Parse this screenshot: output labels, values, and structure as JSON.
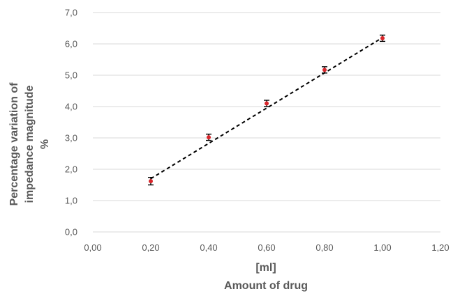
{
  "chart_data": {
    "type": "scatter",
    "title": "",
    "xlabel_lines": [
      "[ml]",
      "Amount of drug"
    ],
    "ylabel_lines": [
      "Percentage variation of",
      "impedance magnitude",
      "%"
    ],
    "xlim": [
      0,
      1.2
    ],
    "ylim": [
      0,
      7
    ],
    "x_ticks": [
      0,
      0.2,
      0.4,
      0.6,
      0.8,
      1.0,
      1.2
    ],
    "x_tick_labels": [
      "0,00",
      "0,20",
      "0,40",
      "0,60",
      "0,80",
      "1,00",
      "1,20"
    ],
    "y_ticks": [
      0,
      1,
      2,
      3,
      4,
      5,
      6,
      7
    ],
    "y_tick_labels": [
      "0,0",
      "1,0",
      "2,0",
      "3,0",
      "4,0",
      "5,0",
      "6,0",
      "7,0"
    ],
    "grid": "horizontal",
    "legend": "none",
    "series": [
      {
        "x": [
          0.2,
          0.4,
          0.6,
          0.8,
          1.0
        ],
        "y": [
          1.62,
          3.02,
          4.1,
          5.17,
          6.18
        ],
        "error": [
          0.12,
          0.1,
          0.1,
          0.1,
          0.1
        ],
        "marker_color": "#d9262b",
        "errorbar_color": "#000000"
      }
    ],
    "trendline": {
      "style": "dashed",
      "color": "#000000",
      "x": [
        0.2,
        1.0
      ],
      "y": [
        1.7,
        6.2
      ]
    },
    "colors": {
      "grid": "#d9d9d9",
      "text": "#595959"
    }
  }
}
